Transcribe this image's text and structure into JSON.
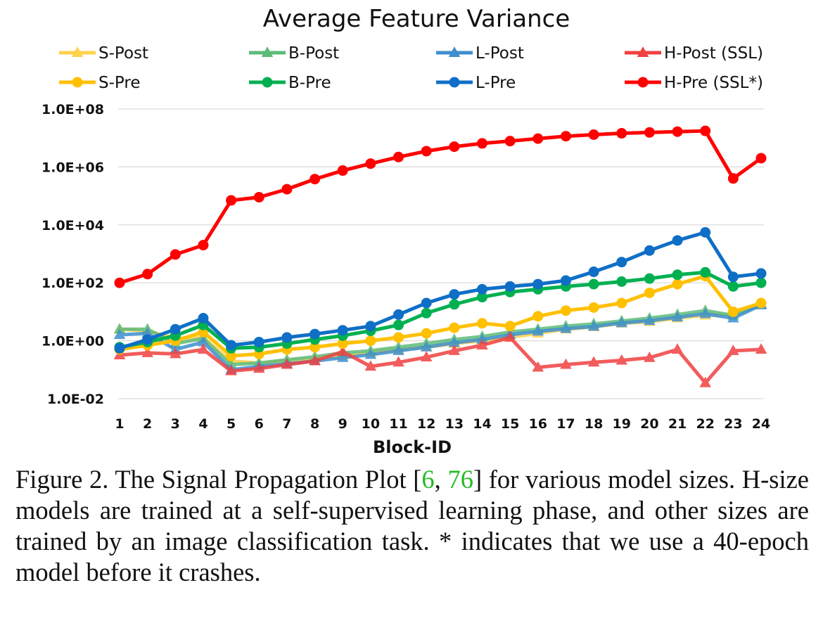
{
  "chart_data": {
    "type": "line",
    "title": "Average Feature Variance",
    "xlabel": "Block-ID",
    "ylabel": "",
    "y_scale": "log",
    "ylim": [
      0.01,
      100000000
    ],
    "y_ticks": [
      "1.0E-02",
      "1.0E+00",
      "1.0E+02",
      "1.0E+04",
      "1.0E+06",
      "1.0E+08"
    ],
    "y_tick_values": [
      0.01,
      1,
      100,
      10000,
      1000000,
      100000000
    ],
    "x": [
      "1",
      "2",
      "3",
      "4",
      "5",
      "6",
      "7",
      "8",
      "9",
      "10",
      "11",
      "12",
      "13",
      "14",
      "15",
      "16",
      "17",
      "18",
      "19",
      "20",
      "21",
      "22",
      "23",
      "24"
    ],
    "grid": "horizontal",
    "legend_position": "top",
    "series": [
      {
        "name": "S-Post",
        "color": "#FFD24D",
        "marker": "triangle",
        "values": [
          2.5,
          2.2,
          1.2,
          1.3,
          0.2,
          0.17,
          0.2,
          0.25,
          0.3,
          0.38,
          0.5,
          0.6,
          0.8,
          1.0,
          1.3,
          1.8,
          2.5,
          3.0,
          4.0,
          4.5,
          6.0,
          7.5,
          8.0,
          18.0
        ]
      },
      {
        "name": "B-Post",
        "color": "#5DBB7A",
        "marker": "triangle",
        "values": [
          2.5,
          2.5,
          0.8,
          1.2,
          0.15,
          0.17,
          0.22,
          0.28,
          0.38,
          0.45,
          0.6,
          0.8,
          1.1,
          1.4,
          2.0,
          2.5,
          3.2,
          3.8,
          4.8,
          6.0,
          8.0,
          11.0,
          7.5,
          18.0
        ]
      },
      {
        "name": "L-Post",
        "color": "#3D8FCF",
        "marker": "triangle",
        "values": [
          1.6,
          1.8,
          0.5,
          0.9,
          0.1,
          0.13,
          0.16,
          0.2,
          0.26,
          0.33,
          0.45,
          0.6,
          0.85,
          1.1,
          1.6,
          2.1,
          2.6,
          3.1,
          4.1,
          4.9,
          6.5,
          8.5,
          6.0,
          17.0
        ]
      },
      {
        "name": "H-Post (SSL)",
        "color": "#F04040",
        "marker": "triangle",
        "values": [
          0.32,
          0.38,
          0.35,
          0.5,
          0.09,
          0.11,
          0.15,
          0.2,
          0.42,
          0.13,
          0.18,
          0.27,
          0.45,
          0.7,
          1.3,
          0.12,
          0.15,
          0.18,
          0.21,
          0.26,
          0.5,
          0.035,
          0.45,
          0.5
        ]
      },
      {
        "name": "S-Pre",
        "color": "#FFC000",
        "marker": "circle",
        "values": [
          0.5,
          0.7,
          1.0,
          2.0,
          0.3,
          0.35,
          0.5,
          0.6,
          0.8,
          1.0,
          1.3,
          1.8,
          2.8,
          4.0,
          3.2,
          7.0,
          11.0,
          14.0,
          20.0,
          45.0,
          90.0,
          170.0,
          10.0,
          20.0
        ]
      },
      {
        "name": "B-Pre",
        "color": "#00B050",
        "marker": "circle",
        "values": [
          0.6,
          0.9,
          1.5,
          3.5,
          0.55,
          0.6,
          0.8,
          1.1,
          1.5,
          2.2,
          3.5,
          9.0,
          18.0,
          32.0,
          48.0,
          60.0,
          75.0,
          90.0,
          110.0,
          140.0,
          190.0,
          230.0,
          75.0,
          100.0
        ]
      },
      {
        "name": "L-Pre",
        "color": "#0F6FC6",
        "marker": "circle",
        "values": [
          0.55,
          1.1,
          2.5,
          6.0,
          0.7,
          0.9,
          1.3,
          1.7,
          2.3,
          3.2,
          8.0,
          20.0,
          40.0,
          60.0,
          75.0,
          90.0,
          120.0,
          240.0,
          520.0,
          1300.0,
          2900.0,
          5500.0,
          160.0,
          210.0
        ]
      },
      {
        "name": "H-Pre (SSL*)",
        "color": "#FF0000",
        "marker": "circle",
        "values": [
          100.0,
          200.0,
          950.0,
          2000.0,
          70000.0,
          90000.0,
          170000.0,
          380000.0,
          750000.0,
          1300000.0,
          2200000.0,
          3500000.0,
          5000000.0,
          6500000.0,
          7800000.0,
          9500000.0,
          11500000.0,
          13000000.0,
          14500000.0,
          15500000.0,
          16500000.0,
          17500000.0,
          400000.0,
          2000000.0
        ]
      }
    ]
  },
  "caption": {
    "lead": "Figure 2.",
    "text_a": " The Signal Propagation Plot [",
    "ref_1": "6",
    "ref_sep": ", ",
    "ref_2": "76",
    "text_b": "] for various model sizes.  H-size models are trained at a self-supervised learning phase, and other sizes are trained by an image classification task. * indicates that we use a 40-epoch model before it crashes."
  }
}
